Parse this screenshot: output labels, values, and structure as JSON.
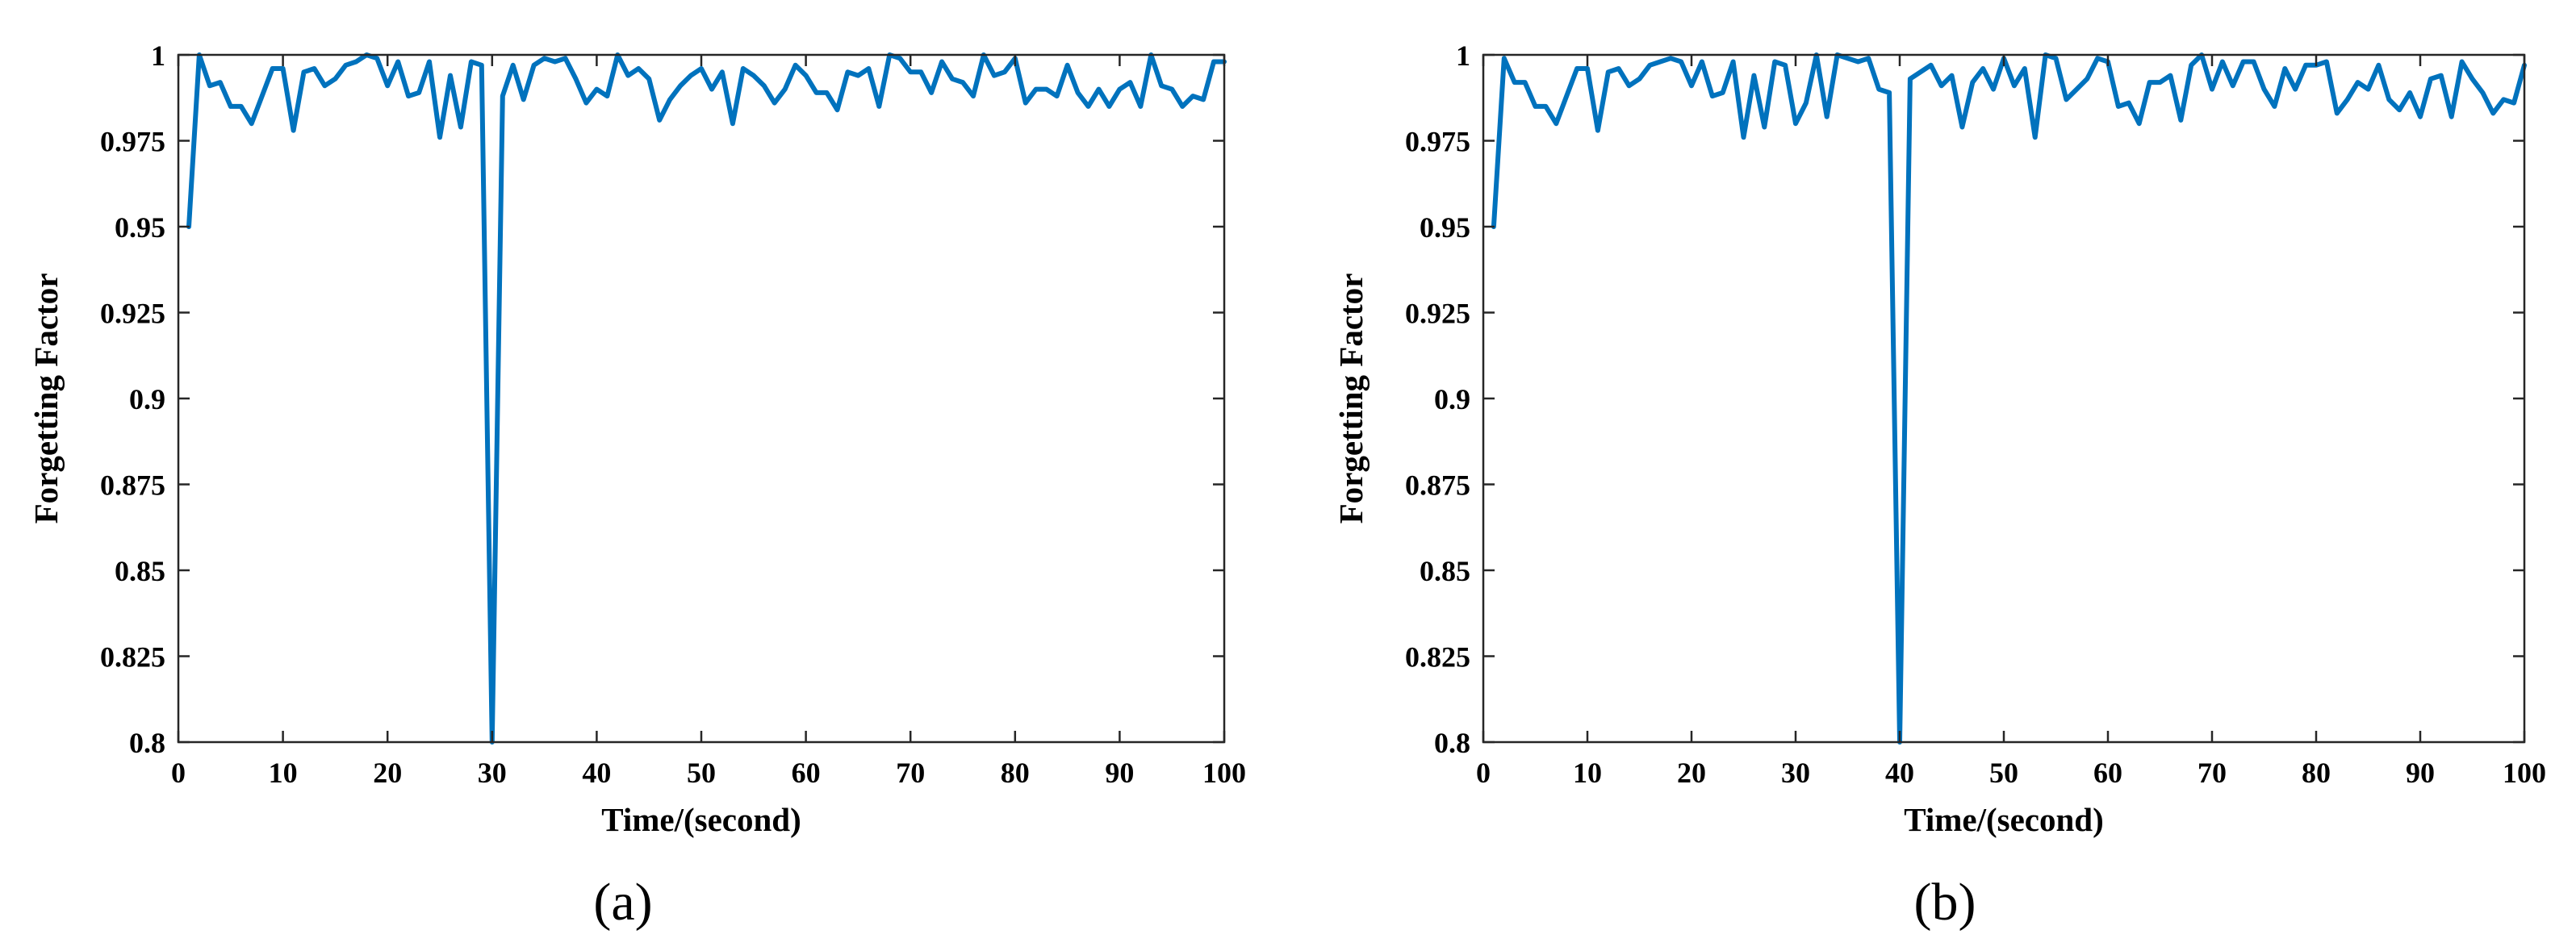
{
  "chart_data": [
    {
      "type": "line",
      "panel_label": "(a)",
      "xlabel": "Time/(second)",
      "ylabel": "Forgetting Factor",
      "xlim": [
        0,
        100
      ],
      "ylim": [
        0.8,
        1
      ],
      "xticks": [
        "0",
        "10",
        "20",
        "30",
        "40",
        "50",
        "60",
        "70",
        "80",
        "90",
        "100"
      ],
      "yticks": [
        "0.8",
        "0.825",
        "0.85",
        "0.875",
        "0.9",
        "0.925",
        "0.95",
        "0.975",
        "1"
      ],
      "grid": false,
      "line_color": "#0072bd",
      "series": [
        {
          "x": [
            1,
            2,
            3,
            4,
            5,
            6,
            7,
            8,
            9,
            10,
            11,
            12,
            13,
            14,
            15,
            16,
            17,
            18,
            19,
            20,
            21,
            22,
            23,
            24,
            25,
            26,
            27,
            28,
            29,
            30,
            31,
            32,
            33,
            34,
            35,
            36,
            37,
            38,
            39,
            40,
            41,
            42,
            43,
            44,
            45,
            46,
            47,
            48,
            49,
            50,
            51,
            52,
            53,
            54,
            55,
            56,
            57,
            58,
            59,
            60,
            61,
            62,
            63,
            64,
            65,
            66,
            67,
            68,
            69,
            70,
            71,
            72,
            73,
            74,
            75,
            76,
            77,
            78,
            79,
            80,
            81,
            82,
            83,
            84,
            85,
            86,
            87,
            88,
            89,
            90,
            91,
            92,
            93,
            94,
            95,
            96,
            97,
            98,
            99,
            100
          ],
          "y": [
            0.95,
            1.0,
            0.991,
            0.992,
            0.985,
            0.985,
            0.98,
            0.988,
            0.996,
            0.996,
            0.978,
            0.995,
            0.996,
            0.991,
            0.993,
            0.997,
            0.998,
            1.0,
            0.999,
            0.991,
            0.998,
            0.988,
            0.989,
            0.998,
            0.976,
            0.994,
            0.979,
            0.998,
            0.997,
            0.8,
            0.988,
            0.997,
            0.987,
            0.997,
            0.999,
            0.998,
            0.999,
            0.993,
            0.986,
            0.99,
            0.988,
            1.0,
            0.994,
            0.996,
            0.993,
            0.981,
            0.987,
            0.991,
            0.994,
            0.996,
            0.99,
            0.995,
            0.98,
            0.996,
            0.994,
            0.991,
            0.986,
            0.99,
            0.997,
            0.994,
            0.989,
            0.989,
            0.984,
            0.995,
            0.994,
            0.996,
            0.985,
            1.0,
            0.999,
            0.995,
            0.995,
            0.989,
            0.998,
            0.993,
            0.992,
            0.988,
            1.0,
            0.994,
            0.995,
            0.999,
            0.986,
            0.99,
            0.99,
            0.988,
            0.997,
            0.989,
            0.985,
            0.99,
            0.985,
            0.99,
            0.992,
            0.985,
            1.0,
            0.991,
            0.99,
            0.985,
            0.988,
            0.987,
            0.998,
            0.998
          ]
        }
      ]
    },
    {
      "type": "line",
      "panel_label": "(b)",
      "xlabel": "Time/(second)",
      "ylabel": "Forgetting Factor",
      "xlim": [
        0,
        100
      ],
      "ylim": [
        0.8,
        1
      ],
      "xticks": [
        "0",
        "10",
        "20",
        "30",
        "40",
        "50",
        "60",
        "70",
        "80",
        "90",
        "100"
      ],
      "yticks": [
        "0.8",
        "0.825",
        "0.85",
        "0.875",
        "0.9",
        "0.925",
        "0.95",
        "0.975",
        "1"
      ],
      "grid": false,
      "line_color": "#0072bd",
      "series": [
        {
          "x": [
            1,
            2,
            3,
            4,
            5,
            6,
            7,
            8,
            9,
            10,
            11,
            12,
            13,
            14,
            15,
            16,
            17,
            18,
            19,
            20,
            21,
            22,
            23,
            24,
            25,
            26,
            27,
            28,
            29,
            30,
            31,
            32,
            33,
            34,
            35,
            36,
            37,
            38,
            39,
            40,
            41,
            42,
            43,
            44,
            45,
            46,
            47,
            48,
            49,
            50,
            51,
            52,
            53,
            54,
            55,
            56,
            57,
            58,
            59,
            60,
            61,
            62,
            63,
            64,
            65,
            66,
            67,
            68,
            69,
            70,
            71,
            72,
            73,
            74,
            75,
            76,
            77,
            78,
            79,
            80,
            81,
            82,
            83,
            84,
            85,
            86,
            87,
            88,
            89,
            90,
            91,
            92,
            93,
            94,
            95,
            96,
            97,
            98,
            99,
            100
          ],
          "y": [
            0.95,
            0.999,
            0.992,
            0.992,
            0.985,
            0.985,
            0.98,
            0.988,
            0.996,
            0.996,
            0.978,
            0.995,
            0.996,
            0.991,
            0.993,
            0.997,
            0.998,
            0.999,
            0.998,
            0.991,
            0.998,
            0.988,
            0.989,
            0.998,
            0.976,
            0.994,
            0.979,
            0.998,
            0.997,
            0.98,
            0.986,
            1.0,
            0.982,
            1.0,
            0.999,
            0.998,
            0.999,
            0.99,
            0.989,
            0.8,
            0.993,
            0.995,
            0.997,
            0.991,
            0.994,
            0.979,
            0.992,
            0.996,
            0.99,
            0.999,
            0.991,
            0.996,
            0.976,
            1.0,
            0.999,
            0.987,
            0.99,
            0.993,
            0.999,
            0.998,
            0.985,
            0.986,
            0.98,
            0.992,
            0.992,
            0.994,
            0.981,
            0.997,
            1.0,
            0.99,
            0.998,
            0.991,
            0.998,
            0.998,
            0.99,
            0.985,
            0.996,
            0.99,
            0.997,
            0.997,
            0.998,
            0.983,
            0.987,
            0.992,
            0.99,
            0.997,
            0.987,
            0.984,
            0.989,
            0.982,
            0.993,
            0.994,
            0.982,
            0.998,
            0.993,
            0.989,
            0.983,
            0.987,
            0.986,
            0.997
          ]
        }
      ]
    }
  ]
}
